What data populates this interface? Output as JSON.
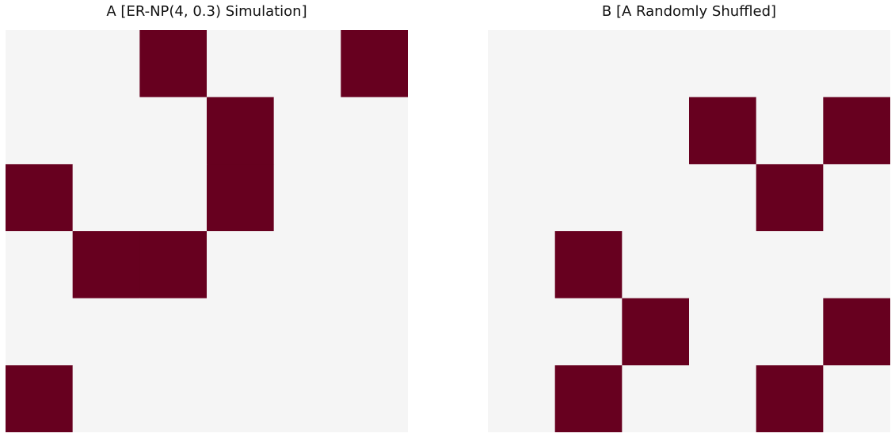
{
  "colors": {
    "off": "#f5f5f5",
    "on": "#67001f"
  },
  "chart_data": [
    {
      "type": "heatmap",
      "title": "A [ER-NP(4, 0.3) Simulation]",
      "rows": 6,
      "cols": 6,
      "values": [
        [
          0,
          0,
          1,
          0,
          0,
          1
        ],
        [
          0,
          0,
          0,
          1,
          0,
          0
        ],
        [
          1,
          0,
          0,
          1,
          0,
          0
        ],
        [
          0,
          1,
          1,
          0,
          0,
          0
        ],
        [
          0,
          0,
          0,
          0,
          0,
          0
        ],
        [
          1,
          0,
          0,
          0,
          0,
          0
        ]
      ]
    },
    {
      "type": "heatmap",
      "title": "B [A Randomly Shuffled]",
      "rows": 6,
      "cols": 6,
      "values": [
        [
          0,
          0,
          0,
          0,
          0,
          0
        ],
        [
          0,
          0,
          0,
          1,
          0,
          1
        ],
        [
          0,
          0,
          0,
          0,
          1,
          0
        ],
        [
          0,
          1,
          0,
          0,
          0,
          0
        ],
        [
          0,
          0,
          1,
          0,
          0,
          1
        ],
        [
          0,
          1,
          0,
          0,
          1,
          0
        ]
      ]
    }
  ]
}
